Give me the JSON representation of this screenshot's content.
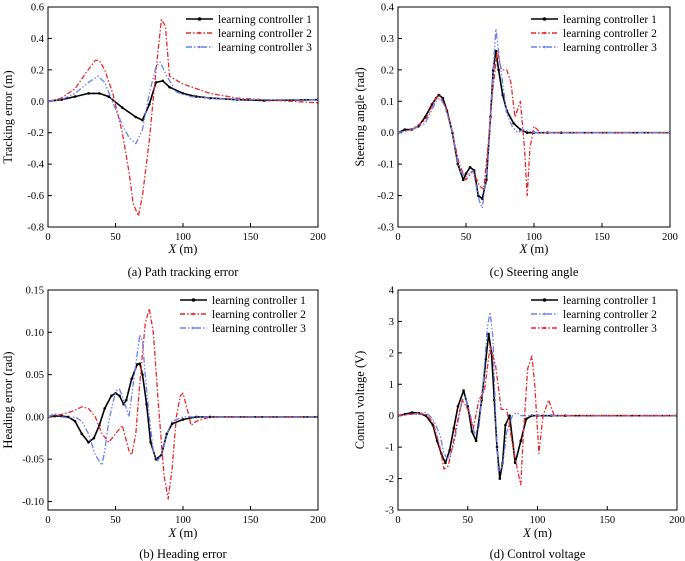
{
  "figure": {
    "colors": {
      "black": "#000000",
      "red": "#e8282e",
      "blue": "#6a7ff2"
    }
  },
  "chart_data": [
    {
      "id": "a",
      "type": "line",
      "caption": "(a) Path tracking error",
      "xlabel_var": "X",
      "xlabel_unit": " (m)",
      "ylabel": "Tracking error (m)",
      "xlim": [
        0,
        200
      ],
      "ylim": [
        -0.8,
        0.6
      ],
      "xticks": [
        0,
        50,
        100,
        150,
        200
      ],
      "yticks": [
        -0.8,
        -0.6,
        -0.4,
        -0.2,
        0.0,
        0.2,
        0.4,
        0.6
      ],
      "ytick_labels": [
        "-0.8",
        "-0.6",
        "-0.4",
        "-0.2",
        "0.0",
        "0.2",
        "0.4",
        "0.6"
      ],
      "legend": {
        "position": "top-right"
      },
      "series": [
        {
          "name": "learning controller 1",
          "color": "#000000",
          "style": "solid-marker",
          "x": [
            0,
            10,
            20,
            30,
            38,
            45,
            55,
            65,
            70,
            75,
            80,
            85,
            90,
            100,
            110,
            120,
            140,
            160,
            200
          ],
          "y": [
            0,
            0.01,
            0.03,
            0.05,
            0.05,
            0.03,
            -0.04,
            -0.1,
            -0.12,
            -0.02,
            0.12,
            0.13,
            0.09,
            0.05,
            0.03,
            0.02,
            0.01,
            0.005,
            0.01
          ]
        },
        {
          "name": "learning controller 2",
          "color": "#e8282e",
          "style": "dashdot",
          "x": [
            0,
            10,
            20,
            28,
            35,
            38,
            42,
            48,
            55,
            60,
            63,
            67,
            70,
            75,
            80,
            84,
            87,
            90,
            100,
            110,
            120,
            140,
            160,
            200
          ],
          "y": [
            0,
            0.02,
            0.08,
            0.18,
            0.26,
            0.26,
            0.2,
            0.05,
            -0.2,
            -0.45,
            -0.65,
            -0.73,
            -0.6,
            -0.25,
            0.2,
            0.52,
            0.48,
            0.16,
            0.11,
            0.08,
            0.05,
            0.02,
            0.01,
            -0.01
          ]
        },
        {
          "name": "learning controller 3",
          "color": "#6a7ff2",
          "style": "dashdotdot",
          "x": [
            0,
            10,
            20,
            30,
            37,
            42,
            50,
            55,
            60,
            65,
            70,
            75,
            80,
            83,
            88,
            95,
            105,
            120,
            140,
            160,
            200
          ],
          "y": [
            0,
            0.01,
            0.05,
            0.12,
            0.16,
            0.12,
            -0.05,
            -0.15,
            -0.23,
            -0.27,
            -0.18,
            0.05,
            0.22,
            0.25,
            0.16,
            0.06,
            0.03,
            0.02,
            0.01,
            0.01,
            0.01
          ]
        }
      ]
    },
    {
      "id": "c",
      "type": "line",
      "caption": "(c) Steering angle",
      "xlabel_var": "X",
      "xlabel_unit": " (m)",
      "ylabel": "Steering angle (rad)",
      "xlim": [
        0,
        200
      ],
      "ylim": [
        -0.3,
        0.4
      ],
      "xticks": [
        0,
        50,
        100,
        150,
        200
      ],
      "yticks": [
        -0.3,
        -0.2,
        -0.1,
        0.0,
        0.1,
        0.2,
        0.3,
        0.4
      ],
      "ytick_labels": [
        "-0.3",
        "-0.2",
        "-0.1",
        "0.0",
        "0.1",
        "0.2",
        "0.3",
        "0.4"
      ],
      "legend": {
        "position": "top-right"
      },
      "series": [
        {
          "name": "learning controller 1",
          "color": "#000000",
          "style": "solid-marker",
          "x": [
            0,
            5,
            10,
            15,
            20,
            25,
            28,
            30,
            33,
            36,
            40,
            44,
            48,
            50,
            53,
            56,
            59,
            62,
            65,
            68,
            70,
            72,
            74,
            77,
            80,
            85,
            90,
            95,
            100,
            110,
            120,
            200
          ],
          "y": [
            0,
            0.01,
            0.01,
            0.02,
            0.05,
            0.09,
            0.11,
            0.12,
            0.11,
            0.07,
            0.0,
            -0.1,
            -0.15,
            -0.13,
            -0.11,
            -0.12,
            -0.2,
            -0.21,
            -0.15,
            0.05,
            0.2,
            0.26,
            0.2,
            0.12,
            0.07,
            0.03,
            0.01,
            0.0,
            0.0,
            0.0,
            0.0,
            0.0
          ]
        },
        {
          "name": "learning controller 2",
          "color": "#e8282e",
          "style": "dashdot",
          "x": [
            0,
            10,
            20,
            28,
            31,
            35,
            40,
            45,
            50,
            55,
            60,
            63,
            66,
            70,
            73,
            76,
            80,
            83,
            86,
            90,
            93,
            95,
            97,
            100,
            105,
            120,
            200
          ],
          "y": [
            0,
            0.01,
            0.04,
            0.11,
            0.12,
            0.08,
            0.0,
            -0.1,
            -0.15,
            -0.12,
            -0.17,
            -0.18,
            -0.05,
            0.15,
            0.26,
            0.2,
            0.2,
            0.16,
            0.05,
            0.1,
            -0.05,
            -0.2,
            -0.05,
            0.02,
            0.0,
            0.0,
            0.0
          ]
        },
        {
          "name": "learning controller 3",
          "color": "#6a7ff2",
          "style": "dashdotdot",
          "x": [
            0,
            10,
            20,
            28,
            31,
            35,
            40,
            45,
            50,
            55,
            60,
            62,
            66,
            70,
            72,
            75,
            80,
            84,
            88,
            92,
            100,
            120,
            200
          ],
          "y": [
            0,
            0.01,
            0.03,
            0.1,
            0.11,
            0.08,
            0.0,
            -0.12,
            -0.14,
            -0.12,
            -0.22,
            -0.24,
            -0.1,
            0.2,
            0.33,
            0.22,
            0.06,
            0.02,
            0.0,
            0.01,
            0.0,
            0.0,
            0.0
          ]
        }
      ]
    },
    {
      "id": "b",
      "type": "line",
      "caption": "(b) Heading error",
      "xlabel_var": "X",
      "xlabel_unit": " (m)",
      "ylabel": "Heading error (rad)",
      "xlim": [
        0,
        200
      ],
      "ylim": [
        -0.11,
        0.15
      ],
      "xticks": [
        0,
        50,
        100,
        150,
        200
      ],
      "yticks": [
        -0.1,
        -0.05,
        0.0,
        0.05,
        0.1,
        0.15
      ],
      "ytick_labels": [
        "-0.10",
        "-0.05",
        "0.00",
        "0.05",
        "0.10",
        "0.15"
      ],
      "legend": {
        "position": "top-right"
      },
      "series": [
        {
          "name": "learning controller 1",
          "color": "#000000",
          "style": "solid-marker",
          "x": [
            0,
            5,
            10,
            15,
            20,
            25,
            30,
            34,
            38,
            42,
            47,
            50,
            53,
            56,
            58,
            62,
            66,
            68,
            70,
            73,
            76,
            80,
            84,
            88,
            92,
            100,
            110,
            120,
            200
          ],
          "y": [
            0,
            0.001,
            0.001,
            0,
            -0.005,
            -0.02,
            -0.03,
            -0.025,
            -0.01,
            0.01,
            0.025,
            0.028,
            0.025,
            0.015,
            0.02,
            0.045,
            0.062,
            0.063,
            0.05,
            0.015,
            -0.03,
            -0.05,
            -0.045,
            -0.02,
            -0.008,
            -0.003,
            0,
            0,
            0
          ]
        },
        {
          "name": "learning controller 2",
          "color": "#e8282e",
          "style": "dashdot",
          "x": [
            0,
            5,
            10,
            15,
            20,
            25,
            30,
            35,
            40,
            45,
            50,
            55,
            60,
            62,
            65,
            68,
            72,
            75,
            78,
            82,
            86,
            89,
            92,
            95,
            98,
            100,
            103,
            106,
            110,
            120,
            200
          ],
          "y": [
            0,
            0.002,
            0.003,
            0.005,
            0.008,
            0.012,
            0.01,
            0,
            -0.02,
            -0.03,
            -0.02,
            -0.01,
            -0.04,
            -0.045,
            -0.02,
            0.04,
            0.11,
            0.128,
            0.1,
            0.01,
            -0.07,
            -0.097,
            -0.06,
            0.0,
            0.025,
            0.028,
            0.01,
            -0.01,
            -0.005,
            0,
            0
          ]
        },
        {
          "name": "learning controller 3",
          "color": "#6a7ff2",
          "style": "dashdotdot",
          "x": [
            0,
            5,
            10,
            15,
            20,
            25,
            30,
            35,
            40,
            42,
            45,
            50,
            53,
            56,
            60,
            64,
            68,
            70,
            72,
            75,
            78,
            81,
            84,
            88,
            92,
            100,
            120,
            200
          ],
          "y": [
            0,
            0.004,
            0,
            -0.001,
            0,
            -0.005,
            -0.02,
            -0.045,
            -0.057,
            -0.04,
            -0.005,
            0.03,
            0.033,
            0.02,
            0.0,
            0.05,
            0.097,
            0.09,
            0.05,
            0.0,
            -0.04,
            -0.052,
            -0.045,
            -0.02,
            -0.005,
            0,
            0,
            0
          ]
        }
      ]
    },
    {
      "id": "d",
      "type": "line",
      "caption": "(d) Control voltage",
      "xlabel_var": "X",
      "xlabel_unit": " (m)",
      "ylabel": "Control voltage (V)",
      "xlim": [
        0,
        200
      ],
      "ylim": [
        -3,
        4
      ],
      "xticks": [
        0,
        50,
        100,
        150,
        200
      ],
      "yticks": [
        -3,
        -2,
        -1,
        0,
        1,
        2,
        3,
        4
      ],
      "ytick_labels": [
        "-3",
        "-2",
        "-1",
        "0",
        "1",
        "2",
        "3",
        "4"
      ],
      "legend": {
        "position": "top-right"
      },
      "series": [
        {
          "name": "learning controller 1",
          "color": "#000000",
          "style": "solid-marker",
          "x": [
            0,
            5,
            10,
            15,
            20,
            25,
            28,
            31,
            34,
            37,
            40,
            43,
            47,
            50,
            53,
            56,
            60,
            63,
            65,
            67,
            69,
            71,
            73,
            75,
            77,
            80,
            84,
            88,
            92,
            96,
            100,
            110,
            120,
            200
          ],
          "y": [
            0,
            0.05,
            0.1,
            0.08,
            0.0,
            -0.3,
            -0.8,
            -1.2,
            -1.5,
            -1.1,
            -0.4,
            0.3,
            0.8,
            0.3,
            -0.5,
            -0.8,
            0.5,
            1.8,
            2.6,
            2.0,
            0.5,
            -1.0,
            -2.0,
            -1.5,
            -0.3,
            0.0,
            -1.5,
            -0.8,
            -0.1,
            0.0,
            0.0,
            0.0,
            0.0,
            0.0
          ]
        },
        {
          "name": "learning controller 2",
          "color": "#6a7ff2",
          "style": "dashdotdot",
          "x": [
            0,
            10,
            20,
            25,
            30,
            33,
            36,
            40,
            43,
            46,
            48,
            51,
            55,
            58,
            61,
            64,
            66,
            68,
            70,
            72,
            75,
            78,
            82,
            85,
            88,
            92,
            100,
            110,
            120,
            200
          ],
          "y": [
            0,
            0.05,
            0.1,
            -0.1,
            -0.6,
            -1.2,
            -1.4,
            -0.9,
            -0.2,
            0.5,
            0.6,
            0.2,
            -0.6,
            -0.4,
            1.0,
            2.8,
            3.3,
            2.5,
            0.0,
            -1.8,
            -1.6,
            -0.5,
            0.0,
            0.1,
            0.0,
            0.0,
            0.0,
            0.0,
            0.0,
            0.0
          ]
        },
        {
          "name": "learning controller 3",
          "color": "#e8282e",
          "style": "dashdot",
          "x": [
            0,
            10,
            20,
            25,
            30,
            33,
            36,
            39,
            42,
            46,
            50,
            54,
            58,
            62,
            66,
            70,
            74,
            78,
            82,
            86,
            88,
            90,
            93,
            96,
            98,
            101,
            104,
            108,
            112,
            120,
            200
          ],
          "y": [
            0,
            0.05,
            0.05,
            -0.2,
            -1.0,
            -1.7,
            -1.6,
            -1.0,
            -0.3,
            0.5,
            0.2,
            -0.4,
            0.5,
            0.8,
            2.2,
            1.6,
            0.2,
            0.2,
            -0.9,
            -1.8,
            -2.2,
            -0.5,
            1.5,
            1.9,
            1.0,
            -1.2,
            0.0,
            0.5,
            0.0,
            0.0,
            0.0
          ]
        }
      ]
    }
  ]
}
